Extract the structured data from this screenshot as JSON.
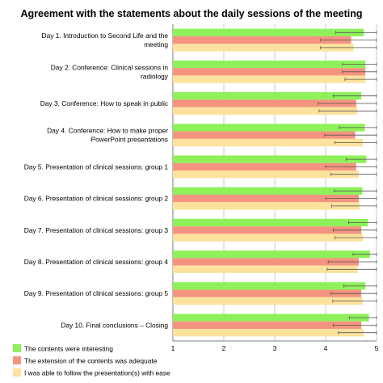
{
  "chart_data": {
    "type": "bar",
    "orientation": "horizontal",
    "title": "Agreement with the statements about the daily sessions of the meeting",
    "xlabel": "",
    "ylabel": "",
    "xlim": [
      1,
      5
    ],
    "x_ticks": [
      "1",
      "2",
      "3",
      "4",
      "5"
    ],
    "grid": "vertical",
    "legend_position": "bottom-left",
    "categories": [
      [
        "Day 1. Introduction to Second Life and the",
        "meeting"
      ],
      [
        "Day 2. Conference: Clinical sessions in",
        "radiology"
      ],
      [
        "Day 3. Conference: How to speak in public"
      ],
      [
        "Day 4. Conference: How to make proper",
        "PowerPoint presentations"
      ],
      [
        "Day 5. Presentation of clinical sessions: group 1"
      ],
      [
        "Day 6. Presentation of clinical sessions: group 2"
      ],
      [
        "Day 7. Presentation of clinical sessions: group 3"
      ],
      [
        "Day 8. Presentation of clinical sessions: group 4"
      ],
      [
        "Day 9. Presentation of clinical sessions: group 5"
      ],
      [
        "Day 10. Final conclusions – Closing"
      ]
    ],
    "series": [
      {
        "name": "The contents were interesting",
        "color": "#8ef15a",
        "values": [
          4.75,
          4.78,
          4.7,
          4.77,
          4.8,
          4.72,
          4.83,
          4.87,
          4.78,
          4.85
        ],
        "error": [
          0.55,
          0.45,
          0.55,
          0.5,
          0.4,
          0.55,
          0.38,
          0.33,
          0.42,
          0.38
        ]
      },
      {
        "name": "The extension of the contents was adequate",
        "color": "#f49480",
        "values": [
          4.5,
          4.78,
          4.6,
          4.58,
          4.6,
          4.65,
          4.7,
          4.65,
          4.7,
          4.7
        ],
        "error": [
          0.6,
          0.45,
          0.75,
          0.6,
          0.6,
          0.65,
          0.55,
          0.6,
          0.6,
          0.55
        ]
      },
      {
        "name": "I was able to follow the presentation(s) with ease",
        "color": "#fce29c",
        "values": [
          4.55,
          4.78,
          4.62,
          4.73,
          4.65,
          4.67,
          4.73,
          4.63,
          4.72,
          4.75
        ],
        "error": [
          0.65,
          0.4,
          0.75,
          0.55,
          0.55,
          0.55,
          0.55,
          0.6,
          0.58,
          0.5
        ]
      }
    ]
  }
}
